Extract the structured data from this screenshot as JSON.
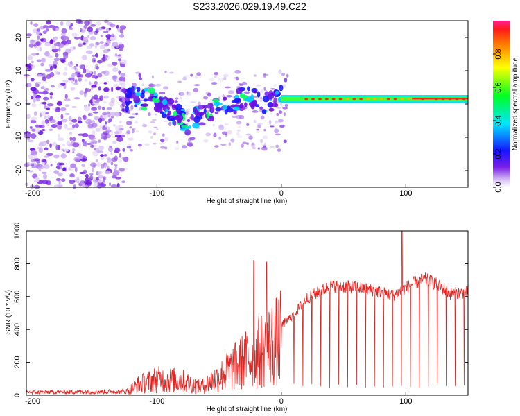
{
  "title": "S233.2026.029.19.49.C22",
  "chart_data": [
    {
      "type": "heatmap",
      "name": "spectrogram",
      "xlabel": "Height of straight line (km)",
      "ylabel": "Frequency (Hz)",
      "xlim": [
        -205,
        150
      ],
      "ylim": [
        -25,
        25
      ],
      "xticks": [
        -200,
        -100,
        0,
        100
      ],
      "yticks": [
        -20,
        -10,
        0,
        10,
        20
      ],
      "colorbar": {
        "label": "Normalized spectral amplitude",
        "range": [
          0,
          1
        ],
        "ticks": [
          "0.0",
          "0.2",
          "0.4",
          "0.6",
          "0.8"
        ]
      },
      "ridge": [
        {
          "x": -120,
          "f": 2
        },
        {
          "x": -100,
          "f": 1
        },
        {
          "x": -75,
          "f": -6
        },
        {
          "x": -60,
          "f": -2
        },
        {
          "x": -45,
          "f": -1
        },
        {
          "x": -30,
          "f": 2
        },
        {
          "x": -15,
          "f": 0.5
        },
        {
          "x": 0,
          "f": 2
        },
        {
          "x": 20,
          "f": 1.5
        },
        {
          "x": 60,
          "f": 1.5
        },
        {
          "x": 100,
          "f": 1.5
        },
        {
          "x": 150,
          "f": 1.5
        }
      ]
    },
    {
      "type": "line",
      "name": "snr",
      "xlabel": "Height of straight line (km)",
      "ylabel": "SNR (10 * v/v)",
      "xlim": [
        -205,
        150
      ],
      "ylim": [
        0,
        1000
      ],
      "xticks": [
        -200,
        -100,
        0,
        100
      ],
      "yticks": [
        0,
        200,
        400,
        600,
        800,
        1000
      ],
      "color": "#e8221f",
      "envelope": [
        {
          "x": -205,
          "y": 20
        },
        {
          "x": -125,
          "y": 25
        },
        {
          "x": -115,
          "y": 80
        },
        {
          "x": -100,
          "y": 120
        },
        {
          "x": -80,
          "y": 110
        },
        {
          "x": -65,
          "y": 60
        },
        {
          "x": -50,
          "y": 140
        },
        {
          "x": -35,
          "y": 230
        },
        {
          "x": -20,
          "y": 320
        },
        {
          "x": -5,
          "y": 400
        },
        {
          "x": 10,
          "y": 500
        },
        {
          "x": 20,
          "y": 600
        },
        {
          "x": 40,
          "y": 680
        },
        {
          "x": 60,
          "y": 670
        },
        {
          "x": 75,
          "y": 650
        },
        {
          "x": 90,
          "y": 620
        },
        {
          "x": 105,
          "y": 690
        },
        {
          "x": 115,
          "y": 720
        },
        {
          "x": 125,
          "y": 690
        },
        {
          "x": 135,
          "y": 630
        },
        {
          "x": 150,
          "y": 640
        }
      ],
      "spikes": [
        {
          "x": -22,
          "y": 820
        },
        {
          "x": -12,
          "y": 810
        },
        {
          "x": 97,
          "y": 1000
        }
      ]
    }
  ]
}
